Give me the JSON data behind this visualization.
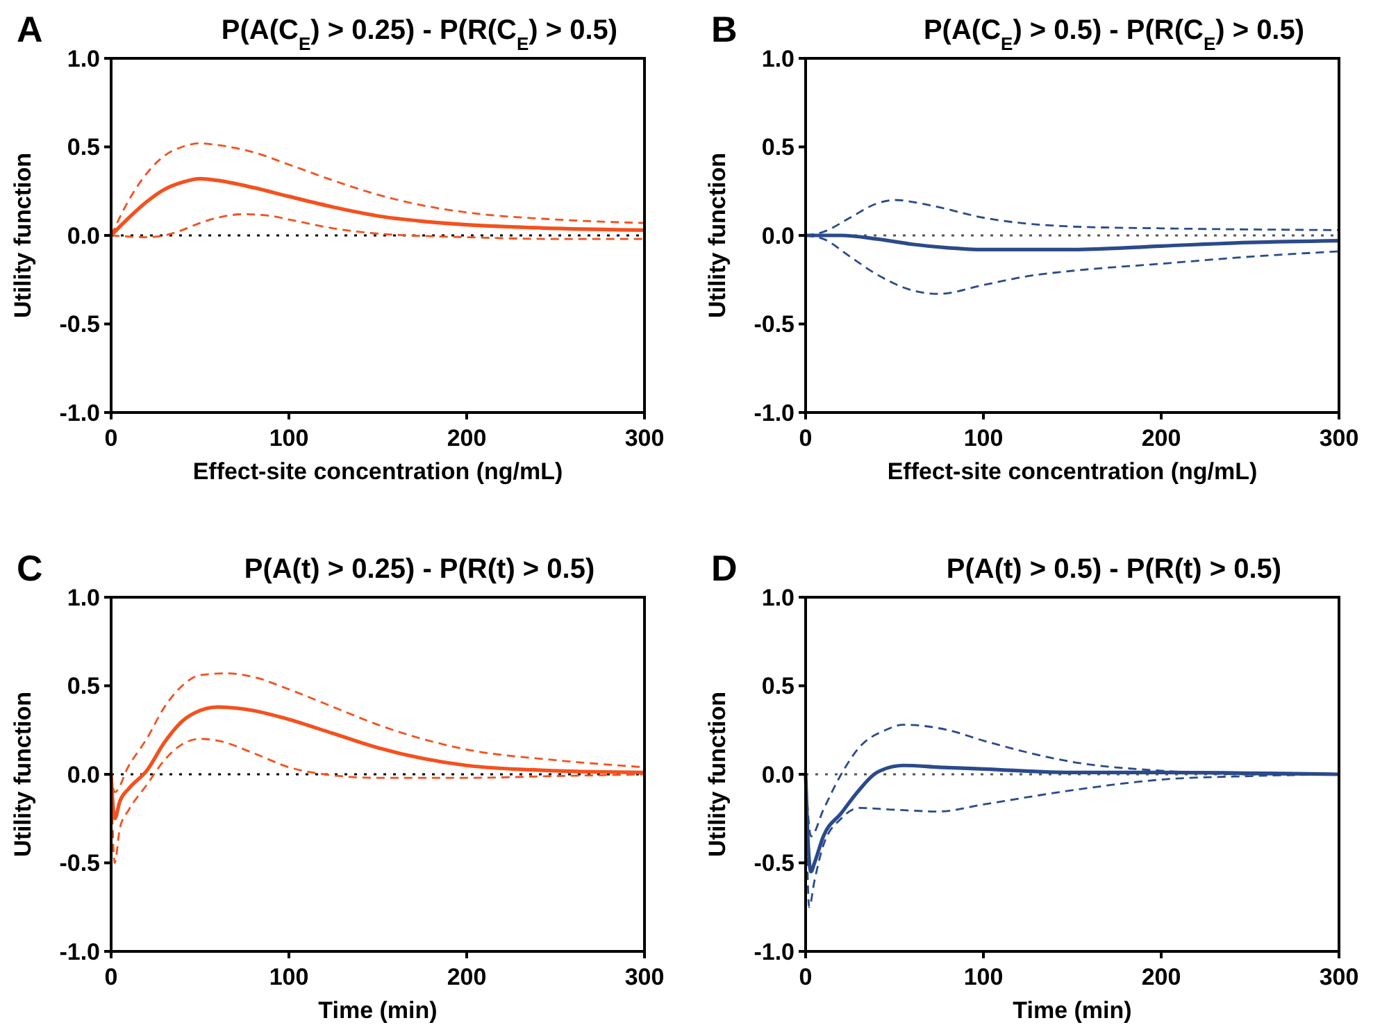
{
  "chart_data": [
    {
      "type": "line",
      "title": "P(A(C$_{E}$) > 0.25) - P(R(C$_{E}$) > 0.5)",
      "xlabel": "Effect-site concentration (ng/mL)",
      "ylabel": "Utility function",
      "annotations": [
        "A"
      ],
      "xlim": [
        0,
        300
      ],
      "xticks": [
        0,
        100,
        200,
        300
      ],
      "ylim": [
        -1,
        1
      ],
      "yticks": [
        {
          "value": -1,
          "label": "-1.0"
        },
        {
          "value": -0.5,
          "label": "-0.5"
        },
        {
          "value": 0,
          "label": "0.0"
        },
        {
          "value": 0.5,
          "label": "0.5"
        },
        {
          "value": 1,
          "label": "1.0"
        }
      ],
      "ref_lines": [
        {
          "axis": "y",
          "value": 0,
          "color": "#000000",
          "line_style": "dotted"
        }
      ],
      "series": [
        {
          "color": "#f4511e",
          "line_style": "solid",
          "x": [
            0,
            10,
            20,
            30,
            40,
            50,
            60,
            80,
            100,
            125,
            150,
            175,
            200,
            250,
            300
          ],
          "values": [
            0,
            0.1,
            0.19,
            0.26,
            0.3,
            0.32,
            0.31,
            0.27,
            0.22,
            0.16,
            0.11,
            0.08,
            0.06,
            0.04,
            0.03
          ]
        },
        {
          "color": "#f4511e",
          "line_style": "dashed",
          "x": [
            0,
            10,
            20,
            30,
            40,
            50,
            60,
            80,
            100,
            125,
            150,
            175,
            200,
            250,
            300
          ],
          "values": [
            0,
            0.2,
            0.35,
            0.45,
            0.5,
            0.52,
            0.51,
            0.47,
            0.4,
            0.31,
            0.23,
            0.17,
            0.13,
            0.09,
            0.07
          ]
        },
        {
          "color": "#f4511e",
          "line_style": "dashed",
          "x": [
            0,
            20,
            30,
            40,
            50,
            60,
            75,
            90,
            100,
            125,
            150,
            200,
            250,
            300
          ],
          "values": [
            0,
            -0.01,
            0,
            0.03,
            0.07,
            0.1,
            0.12,
            0.11,
            0.09,
            0.04,
            0.01,
            -0.01,
            -0.02,
            -0.02
          ]
        }
      ]
    },
    {
      "type": "line",
      "title": "P(A(C$_{E}$) > 0.5) - P(R(C$_{E}$) > 0.5)",
      "xlabel": "Effect-site concentration (ng/mL)",
      "ylabel": "Utility function",
      "annotations": [
        "B"
      ],
      "xlim": [
        0,
        300
      ],
      "xticks": [
        0,
        100,
        200,
        300
      ],
      "ylim": [
        -1,
        1
      ],
      "yticks": [
        {
          "value": -1,
          "label": "-1.0"
        },
        {
          "value": -0.5,
          "label": "-0.5"
        },
        {
          "value": 0,
          "label": "0.0"
        },
        {
          "value": 0.5,
          "label": "0.5"
        },
        {
          "value": 1,
          "label": "1.0"
        }
      ],
      "ref_lines": [
        {
          "axis": "y",
          "value": 0,
          "color": "#555555",
          "line_style": "dotted"
        }
      ],
      "series": [
        {
          "color": "#2b4a8b",
          "line_style": "solid",
          "x": [
            0,
            20,
            40,
            60,
            80,
            100,
            150,
            200,
            250,
            300
          ],
          "values": [
            0,
            0,
            -0.02,
            -0.05,
            -0.07,
            -0.08,
            -0.08,
            -0.06,
            -0.04,
            -0.03
          ]
        },
        {
          "color": "#2b4a8b",
          "line_style": "dashed",
          "x": [
            0,
            10,
            25,
            40,
            50,
            70,
            100,
            150,
            200,
            300
          ],
          "values": [
            0,
            0.02,
            0.1,
            0.18,
            0.2,
            0.17,
            0.1,
            0.05,
            0.04,
            0.03
          ]
        },
        {
          "color": "#2b4a8b",
          "line_style": "dashed",
          "x": [
            0,
            10,
            25,
            40,
            60,
            75,
            100,
            125,
            150,
            200,
            250,
            300
          ],
          "values": [
            0,
            -0.02,
            -0.12,
            -0.22,
            -0.31,
            -0.33,
            -0.28,
            -0.23,
            -0.2,
            -0.16,
            -0.12,
            -0.09
          ]
        }
      ]
    },
    {
      "type": "line",
      "title": "P(A(t) > 0.25) - P(R(t) > 0.5)",
      "xlabel": "Time (min)",
      "ylabel": "Utility function",
      "annotations": [
        "C"
      ],
      "xlim": [
        0,
        300
      ],
      "xticks": [
        0,
        100,
        200,
        300
      ],
      "ylim": [
        -1,
        1
      ],
      "yticks": [
        {
          "value": -1,
          "label": "-1.0"
        },
        {
          "value": -0.5,
          "label": "-0.5"
        },
        {
          "value": 0,
          "label": "0.0"
        },
        {
          "value": 0.5,
          "label": "0.5"
        },
        {
          "value": 1,
          "label": "1.0"
        }
      ],
      "ref_lines": [
        {
          "axis": "y",
          "value": 0,
          "color": "#000000",
          "line_style": "dotted"
        }
      ],
      "series": [
        {
          "color": "#f4511e",
          "line_style": "solid",
          "x": [
            0,
            2,
            5,
            10,
            20,
            30,
            40,
            50,
            60,
            80,
            100,
            125,
            150,
            175,
            200,
            250,
            300
          ],
          "values": [
            0,
            -0.25,
            -0.15,
            -0.08,
            0.02,
            0.18,
            0.3,
            0.36,
            0.38,
            0.36,
            0.31,
            0.23,
            0.15,
            0.09,
            0.05,
            0.02,
            0.01
          ]
        },
        {
          "color": "#f4511e",
          "line_style": "dashed",
          "x": [
            0,
            2,
            10,
            20,
            30,
            40,
            50,
            65,
            80,
            100,
            125,
            150,
            175,
            200,
            250,
            300
          ],
          "values": [
            0,
            -0.1,
            0.05,
            0.2,
            0.38,
            0.5,
            0.56,
            0.57,
            0.55,
            0.48,
            0.38,
            0.28,
            0.2,
            0.14,
            0.08,
            0.04
          ]
        },
        {
          "color": "#f4511e",
          "line_style": "dashed",
          "x": [
            0,
            2,
            5,
            10,
            20,
            30,
            40,
            50,
            60,
            80,
            100,
            120,
            150,
            200,
            250,
            300
          ],
          "values": [
            0,
            -0.5,
            -0.3,
            -0.2,
            -0.06,
            0.08,
            0.17,
            0.2,
            0.19,
            0.12,
            0.04,
            0,
            -0.02,
            -0.02,
            -0.01,
            0
          ]
        }
      ]
    },
    {
      "type": "line",
      "title": "P(A(t) > 0.5) - P(R(t) > 0.5)",
      "xlabel": "Time (min)",
      "ylabel": "Utility function",
      "annotations": [
        "D"
      ],
      "xlim": [
        0,
        300
      ],
      "xticks": [
        0,
        100,
        200,
        300
      ],
      "ylim": [
        -1,
        1
      ],
      "yticks": [
        {
          "value": -1,
          "label": "-1.0"
        },
        {
          "value": -0.5,
          "label": "-0.5"
        },
        {
          "value": 0,
          "label": "0.0"
        },
        {
          "value": 0.5,
          "label": "0.5"
        },
        {
          "value": 1,
          "label": "1.0"
        }
      ],
      "ref_lines": [
        {
          "axis": "y",
          "value": 0,
          "color": "#555555",
          "line_style": "dotted"
        }
      ],
      "series": [
        {
          "color": "#2b4a8b",
          "line_style": "solid",
          "x": [
            0,
            1,
            3,
            5,
            10,
            20,
            30,
            40,
            55,
            75,
            100,
            150,
            200,
            300
          ],
          "values": [
            0,
            -0.3,
            -0.55,
            -0.5,
            -0.35,
            -0.22,
            -0.09,
            0.01,
            0.05,
            0.04,
            0.03,
            0.01,
            0.01,
            0
          ]
        },
        {
          "color": "#2b4a8b",
          "line_style": "dashed",
          "x": [
            0,
            3,
            10,
            20,
            30,
            45,
            55,
            80,
            100,
            150,
            200,
            250,
            300
          ],
          "values": [
            0,
            -0.35,
            -0.2,
            0,
            0.15,
            0.25,
            0.28,
            0.25,
            0.19,
            0.07,
            0.02,
            0,
            0
          ]
        },
        {
          "color": "#2b4a8b",
          "line_style": "dashed",
          "x": [
            0,
            2,
            5,
            10,
            20,
            30,
            50,
            75,
            100,
            150,
            200,
            250,
            300
          ],
          "values": [
            0,
            -0.75,
            -0.6,
            -0.4,
            -0.25,
            -0.19,
            -0.2,
            -0.21,
            -0.17,
            -0.09,
            -0.03,
            -0.01,
            0
          ]
        }
      ]
    }
  ]
}
